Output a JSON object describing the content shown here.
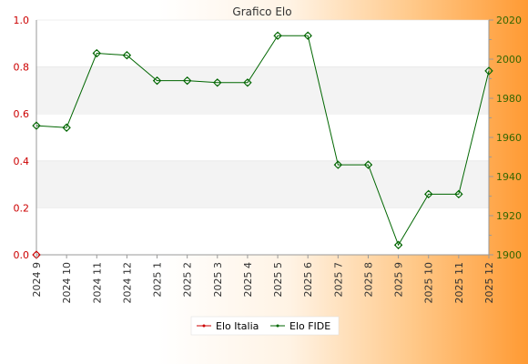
{
  "chart_data": {
    "type": "line",
    "title": "Grafico Elo",
    "categories": [
      "2024 9",
      "2024 10",
      "2024 11",
      "2024 12",
      "2025 1",
      "2025 2",
      "2025 3",
      "2025 4",
      "2025 5",
      "2025 6",
      "2025 7",
      "2025 8",
      "2025 9",
      "2025 10",
      "2025 11",
      "2025 12"
    ],
    "left_axis": {
      "ylim": [
        0,
        1.0
      ],
      "ticks": [
        "0.0",
        "0.2",
        "0.4",
        "0.6",
        "0.8",
        "1.0"
      ],
      "color": "#cc0000"
    },
    "right_axis": {
      "ylim": [
        1900,
        2020
      ],
      "ticks": [
        "1900",
        "1920",
        "1940",
        "1960",
        "1980",
        "2000",
        "2020"
      ],
      "color": "#336600"
    },
    "series": [
      {
        "name": "Elo Italia",
        "axis": "left",
        "color": "#cc0000",
        "values": [
          0,
          null,
          null,
          null,
          null,
          null,
          null,
          null,
          null,
          null,
          null,
          null,
          null,
          null,
          null,
          null
        ]
      },
      {
        "name": "Elo FIDE",
        "axis": "right",
        "color": "#006600",
        "values": [
          1966,
          1965,
          2003,
          2002,
          1989,
          1989,
          1988,
          1988,
          2012,
          2012,
          1946,
          1946,
          1905,
          1931,
          1931,
          1994
        ]
      }
    ],
    "grid": "horizontal bands",
    "legend_position": "bottom-center"
  }
}
